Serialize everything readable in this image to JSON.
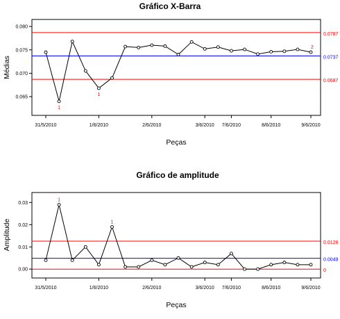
{
  "chart_data": [
    {
      "type": "line",
      "title": "Gráfico X-Barra",
      "xlabel": "Peças",
      "ylabel": "Médias",
      "ylim": [
        0.061,
        0.0815
      ],
      "yticks": [
        "0.065",
        "0.070",
        "0.075",
        "0.080"
      ],
      "ytick_values": [
        0.065,
        0.07,
        0.075,
        0.08
      ],
      "xtick_labels": [
        "31/5/2010",
        "1/6/2010",
        "2/6/2010",
        "3/6/2010",
        "7/6/2010",
        "8/6/2010",
        "9/6/2010"
      ],
      "xtick_indices": [
        0,
        4,
        8,
        12,
        14,
        17,
        20
      ],
      "values": [
        0.0745,
        0.064,
        0.0768,
        0.0705,
        0.0668,
        0.069,
        0.0757,
        0.0755,
        0.076,
        0.0758,
        0.074,
        0.0767,
        0.0752,
        0.0756,
        0.0748,
        0.0751,
        0.0741,
        0.0746,
        0.0747,
        0.0751,
        0.0745
      ],
      "limits": [
        {
          "label": "0.0787",
          "value": 0.0787,
          "color": "#ff0000"
        },
        {
          "label": "0.0737",
          "value": 0.0737,
          "color": "#0000ff"
        },
        {
          "label": "0.0687",
          "value": 0.0687,
          "color": "#ff0000"
        }
      ],
      "violations": [
        {
          "index": 1,
          "label": "1"
        },
        {
          "index": 4,
          "label": "1"
        },
        {
          "index": 20,
          "label": "2"
        }
      ],
      "grid": false
    },
    {
      "type": "line",
      "title": "Gráfico de amplitude",
      "xlabel": "Peças",
      "ylabel": "Amplitude",
      "ylim": [
        -0.004,
        0.0345
      ],
      "yticks": [
        "0.00",
        "0.01",
        "0.02",
        "0.03"
      ],
      "ytick_values": [
        0.0,
        0.01,
        0.02,
        0.03
      ],
      "xtick_labels": [
        "31/5/2010",
        "1/6/2010",
        "2/6/2010",
        "3/6/2010",
        "7/6/2010",
        "8/6/2010",
        "9/6/2010"
      ],
      "xtick_indices": [
        0,
        4,
        8,
        12,
        14,
        17,
        20
      ],
      "values": [
        0.004,
        0.029,
        0.004,
        0.01,
        0.002,
        0.019,
        0.001,
        0.001,
        0.004,
        0.002,
        0.005,
        0.001,
        0.003,
        0.002,
        0.007,
        0.0,
        0.0,
        0.002,
        0.003,
        0.002,
        0.002
      ],
      "limits": [
        {
          "label": "0.0126",
          "value": 0.0126,
          "color": "#ff0000"
        },
        {
          "label": "0.0049",
          "value": 0.0049,
          "color": "#0000ff"
        },
        {
          "label": "0",
          "value": 0.0,
          "color": "#ff0000"
        }
      ],
      "violations": [
        {
          "index": 1,
          "label": "1"
        },
        {
          "index": 5,
          "label": "1"
        }
      ],
      "grid": false
    }
  ]
}
